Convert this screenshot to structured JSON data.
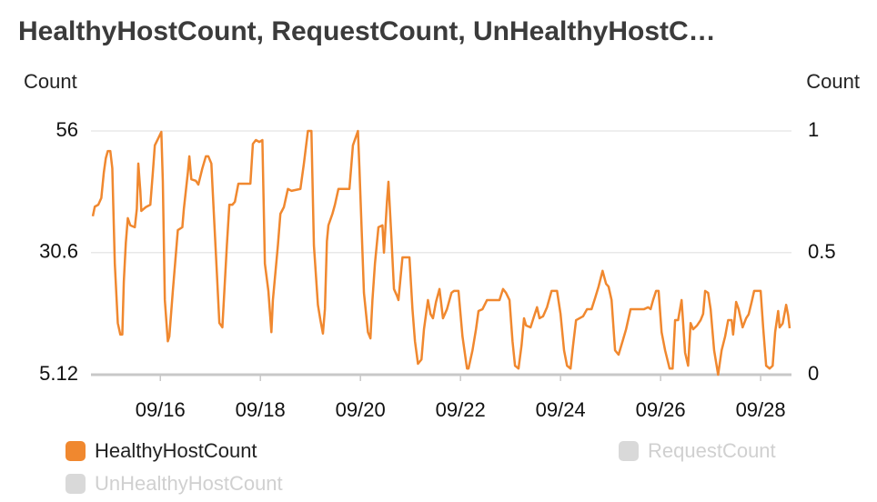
{
  "chart_data": {
    "type": "line",
    "title": "HealthyHostCount, RequestCount, UnHealthyHostC…",
    "y_label": "Count",
    "y2_label": "Count",
    "x": [
      14.65,
      14.69,
      14.76,
      14.82,
      14.87,
      14.91,
      14.95,
      15.0,
      15.04,
      15.09,
      15.15,
      15.2,
      15.24,
      15.27,
      15.31,
      15.35,
      15.4,
      15.49,
      15.53,
      15.56,
      15.6,
      15.62,
      15.71,
      15.8,
      15.85,
      15.89,
      15.96,
      16.02,
      16.05,
      16.09,
      16.15,
      16.18,
      16.25,
      16.31,
      16.35,
      16.44,
      16.47,
      16.55,
      16.58,
      16.62,
      16.71,
      16.76,
      16.84,
      16.91,
      16.96,
      17.02,
      17.07,
      17.13,
      17.18,
      17.24,
      17.27,
      17.33,
      17.38,
      17.44,
      17.49,
      17.56,
      17.8,
      17.85,
      17.91,
      17.98,
      18.04,
      18.09,
      18.16,
      18.22,
      18.25,
      18.35,
      18.4,
      18.47,
      18.55,
      18.62,
      18.8,
      18.87,
      18.95,
      19.02,
      19.07,
      19.15,
      19.2,
      19.25,
      19.29,
      19.33,
      19.36,
      19.44,
      19.49,
      19.56,
      19.78,
      19.85,
      19.95,
      19.98,
      20.07,
      20.15,
      20.2,
      20.24,
      20.29,
      20.36,
      20.44,
      20.47,
      20.53,
      20.56,
      20.62,
      20.67,
      20.73,
      20.76,
      20.84,
      20.98,
      21.04,
      21.09,
      21.15,
      21.22,
      21.27,
      21.35,
      21.4,
      21.45,
      21.51,
      21.58,
      21.65,
      21.73,
      21.82,
      21.87,
      21.96,
      22.04,
      22.13,
      22.16,
      22.24,
      22.31,
      22.36,
      22.44,
      22.53,
      22.78,
      22.85,
      22.91,
      22.98,
      23.04,
      23.09,
      23.16,
      23.22,
      23.27,
      23.31,
      23.4,
      23.47,
      23.53,
      23.58,
      23.65,
      23.73,
      23.82,
      23.93,
      24.0,
      24.07,
      24.13,
      24.2,
      24.25,
      24.31,
      24.38,
      24.45,
      24.53,
      24.62,
      24.69,
      24.76,
      24.84,
      24.91,
      24.96,
      25.02,
      25.09,
      25.16,
      25.24,
      25.31,
      25.4,
      25.49,
      25.67,
      25.75,
      25.8,
      25.85,
      25.91,
      25.96,
      26.02,
      26.09,
      26.18,
      26.24,
      26.29,
      26.35,
      26.42,
      26.49,
      26.55,
      26.6,
      26.65,
      26.73,
      26.8,
      26.85,
      26.89,
      26.95,
      27.0,
      27.07,
      27.15,
      27.22,
      27.29,
      27.35,
      27.42,
      27.45,
      27.51,
      27.56,
      27.64,
      27.71,
      27.76,
      27.82,
      27.87,
      28.0,
      28.05,
      28.11,
      28.18,
      28.24,
      28.29,
      28.35,
      28.38,
      28.44,
      28.51,
      28.55,
      28.58
    ],
    "series": [
      {
        "name": "HealthyHostCount",
        "color": "#f0882f",
        "values": [
          38.2,
          40.2,
          40.6,
          42.0,
          47.3,
          50.3,
          51.8,
          51.8,
          48.2,
          28.3,
          15.9,
          13.5,
          13.5,
          24.5,
          32.6,
          37.8,
          36.3,
          35.9,
          39.7,
          49.2,
          43.5,
          39.3,
          40.1,
          40.6,
          47.3,
          53.0,
          54.5,
          55.8,
          45.4,
          20.7,
          12.1,
          13.1,
          22.6,
          30.2,
          35.3,
          35.9,
          39.7,
          47.3,
          50.7,
          45.9,
          45.6,
          44.8,
          48.2,
          50.7,
          50.7,
          49.2,
          38.7,
          26.4,
          15.9,
          15.0,
          20.7,
          32.1,
          40.6,
          40.6,
          41.2,
          45.0,
          45.0,
          53.3,
          54.1,
          53.7,
          54.1,
          28.3,
          22.6,
          14.0,
          20.7,
          32.1,
          38.7,
          40.1,
          43.9,
          43.5,
          43.9,
          49.2,
          56.0,
          56.0,
          32.1,
          19.7,
          16.5,
          13.7,
          18.8,
          33.0,
          36.3,
          38.7,
          40.6,
          43.9,
          43.9,
          53.0,
          56.0,
          48.2,
          22.2,
          14.0,
          12.7,
          20.7,
          28.3,
          35.9,
          36.3,
          30.6,
          41.2,
          45.4,
          33.6,
          23.0,
          21.6,
          20.7,
          29.6,
          29.6,
          18.8,
          12.1,
          7.4,
          8.3,
          14.6,
          20.7,
          17.8,
          16.9,
          20.3,
          23.0,
          16.9,
          18.8,
          22.2,
          22.6,
          22.6,
          13.1,
          6.4,
          6.4,
          10.2,
          14.6,
          18.4,
          18.8,
          20.7,
          20.7,
          23.0,
          22.2,
          20.7,
          12.1,
          7.0,
          6.4,
          11.2,
          16.9,
          15.4,
          15.0,
          17.3,
          19.2,
          16.9,
          17.3,
          19.2,
          22.6,
          22.6,
          17.8,
          10.2,
          7.0,
          6.4,
          11.2,
          16.5,
          16.9,
          17.3,
          18.8,
          18.8,
          21.1,
          23.5,
          26.8,
          24.1,
          23.5,
          20.7,
          10.2,
          9.3,
          12.1,
          14.6,
          18.8,
          18.8,
          18.8,
          19.2,
          18.8,
          20.7,
          22.6,
          22.6,
          14.0,
          10.2,
          6.4,
          6.4,
          16.5,
          16.5,
          20.7,
          9.7,
          7.0,
          15.9,
          14.6,
          15.4,
          16.5,
          17.8,
          22.6,
          22.2,
          18.8,
          10.2,
          5.12,
          10.2,
          13.1,
          16.5,
          16.5,
          13.5,
          20.3,
          18.8,
          15.0,
          16.9,
          17.7,
          20.3,
          22.6,
          22.6,
          15.0,
          7.0,
          6.4,
          7.0,
          14.0,
          18.4,
          15.0,
          15.8,
          19.7,
          17.5,
          14.8
        ]
      },
      {
        "name": "RequestCount",
        "color": "#d9d9d9",
        "hidden": true
      },
      {
        "name": "UnHealthyHostCount",
        "color": "#d9d9d9",
        "hidden": true
      }
    ],
    "xlim": [
      14.65,
      28.58
    ],
    "xticks": [
      {
        "value": 16,
        "label": "09/16"
      },
      {
        "value": 18,
        "label": "09/18"
      },
      {
        "value": 20,
        "label": "09/20"
      },
      {
        "value": 22,
        "label": "09/22"
      },
      {
        "value": 24,
        "label": "09/24"
      },
      {
        "value": 26,
        "label": "09/26"
      },
      {
        "value": 28,
        "label": "09/28"
      }
    ],
    "ylim": [
      5.12,
      56
    ],
    "yticks": [
      5.12,
      30.6,
      56
    ],
    "y2lim": [
      0,
      1
    ],
    "y2ticks": [
      0,
      0.5,
      1
    ],
    "grid": true,
    "legend": "bottom"
  }
}
